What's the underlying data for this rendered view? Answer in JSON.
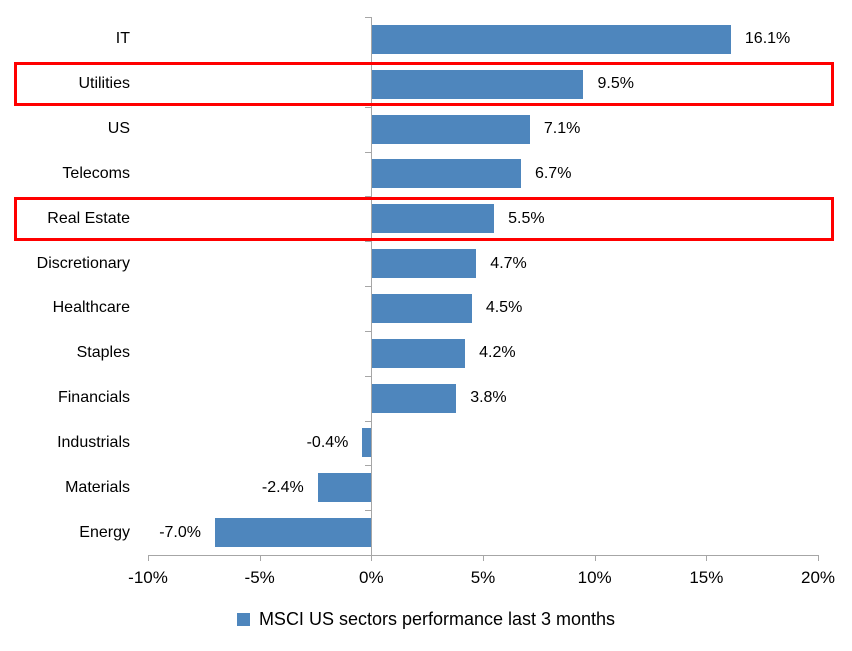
{
  "chart_data": {
    "type": "bar",
    "orientation": "horizontal",
    "title": "",
    "xlabel": "",
    "ylabel": "",
    "categories": [
      "IT",
      "Utilities",
      "US",
      "Telecoms",
      "Real Estate",
      "Discretionary",
      "Healthcare",
      "Staples",
      "Financials",
      "Industrials",
      "Materials",
      "Energy"
    ],
    "values": [
      16.1,
      9.5,
      7.1,
      6.7,
      5.5,
      4.7,
      4.5,
      4.2,
      3.8,
      -0.4,
      -2.4,
      -7.0
    ],
    "value_labels": [
      "16.1%",
      "9.5%",
      "7.1%",
      "6.7%",
      "5.5%",
      "4.7%",
      "4.5%",
      "4.2%",
      "3.8%",
      "-0.4%",
      "-2.4%",
      "-7.0%"
    ],
    "xlim": [
      -10,
      20
    ],
    "xtick_values": [
      -10,
      -5,
      0,
      5,
      10,
      15,
      20
    ],
    "xtick_labels": [
      "-10%",
      "-5%",
      "0%",
      "5%",
      "10%",
      "15%",
      "20%"
    ],
    "grid": false,
    "legend": "MSCI US sectors performance last 3 months",
    "legend_position": "bottom-center",
    "bar_color": "#4E86BD",
    "axis_color": "#A6A6A6",
    "text_color": "#000000",
    "highlight_color": "#FF0000",
    "highlighted_categories": [
      "Utilities",
      "Real Estate"
    ]
  }
}
